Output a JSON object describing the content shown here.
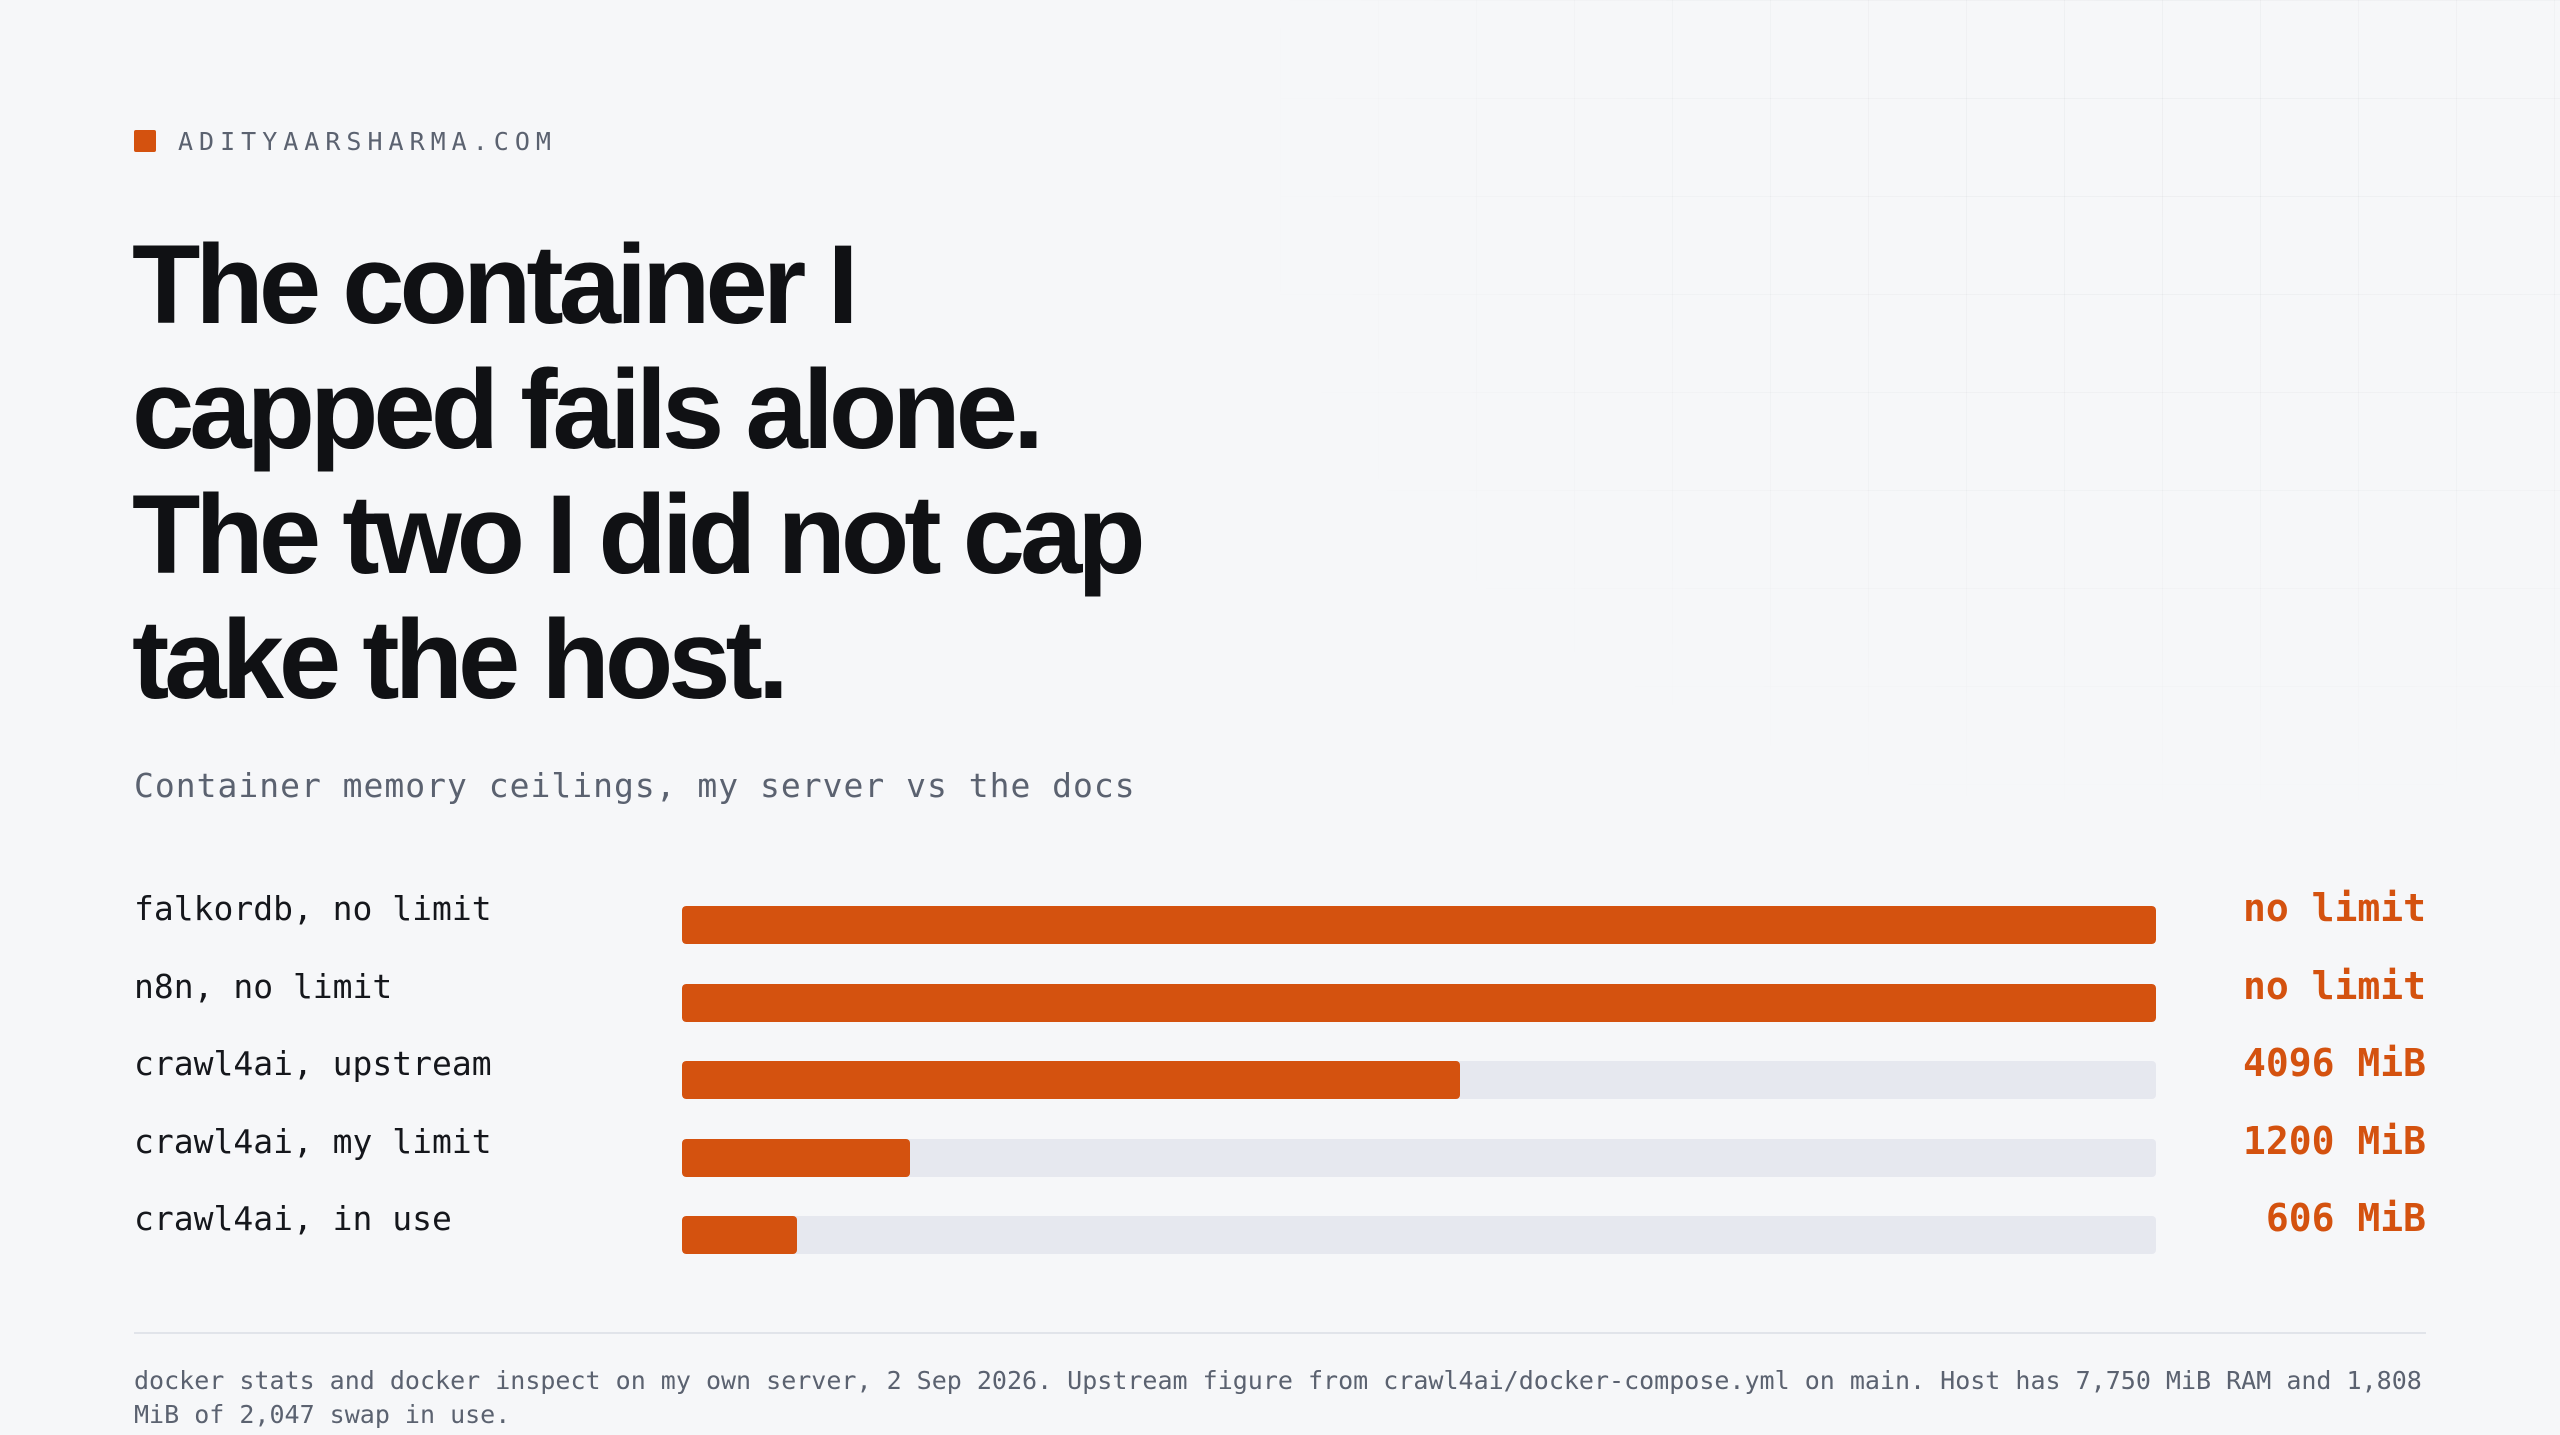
{
  "site": {
    "brand": "ADITYAARSHARMA.COM",
    "accent_color": "#d4520f",
    "track_color": "#e6e8ef"
  },
  "headline": {
    "lines": [
      "The container I",
      "capped fails alone.",
      "The two I did not cap",
      "take the host."
    ]
  },
  "chart_data": {
    "type": "bar",
    "orientation": "horizontal",
    "title": "",
    "subtitle": "Container memory ceilings, my server vs the docs",
    "unit": "MiB",
    "categories": [
      "falkordb, no limit",
      "n8n, no limit",
      "crawl4ai, upstream",
      "crawl4ai, my limit",
      "crawl4ai, in use"
    ],
    "value_labels": [
      "no limit",
      "no limit",
      "4096 MiB",
      "1200 MiB",
      "606 MiB"
    ],
    "values": [
      null,
      null,
      4096,
      1200,
      606
    ],
    "bar_fraction": [
      1.0,
      1.0,
      0.528,
      0.155,
      0.078
    ],
    "scale_max_mib": 7750
  },
  "footnote": "docker stats and docker inspect on my own server, 2 Sep 2026. Upstream figure from crawl4ai/docker-compose.yml on main. Host has 7,750 MiB RAM and 1,808 MiB of 2,047 swap in use."
}
